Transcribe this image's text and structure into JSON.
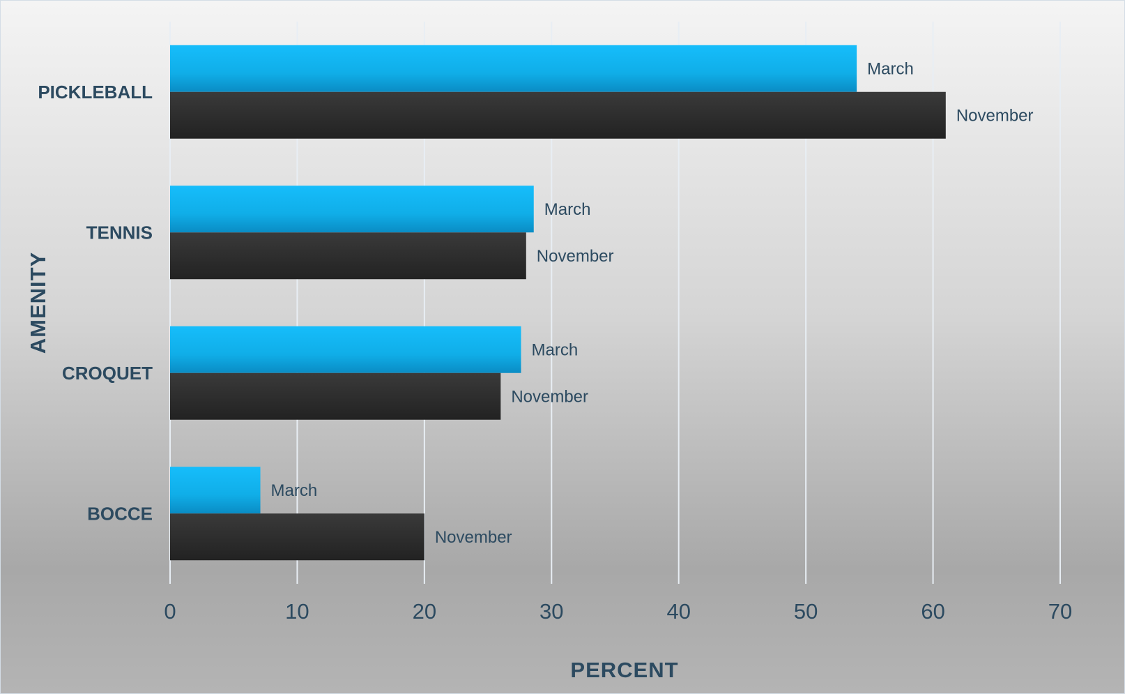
{
  "chart_data": {
    "type": "bar",
    "orientation": "horizontal",
    "categories": [
      "PICKLEBALL",
      "TENNIS",
      "CROQUET",
      "BOCCE"
    ],
    "series": [
      {
        "name": "March",
        "values": [
          54,
          28.6,
          27.6,
          7.1
        ]
      },
      {
        "name": "November",
        "values": [
          61,
          28,
          26,
          20
        ]
      }
    ],
    "xlabel": "PERCENT",
    "ylabel": "AMENITY",
    "xlim": [
      0,
      70
    ],
    "xticks": [
      "0",
      "10",
      "20",
      "30",
      "40",
      "50",
      "60",
      "70"
    ],
    "grid": true,
    "legend": "none",
    "colors": {
      "March": "#14b4f0",
      "November": "#2b2b2b",
      "text": "#2c4a60",
      "grid": "#e8eef4"
    }
  }
}
